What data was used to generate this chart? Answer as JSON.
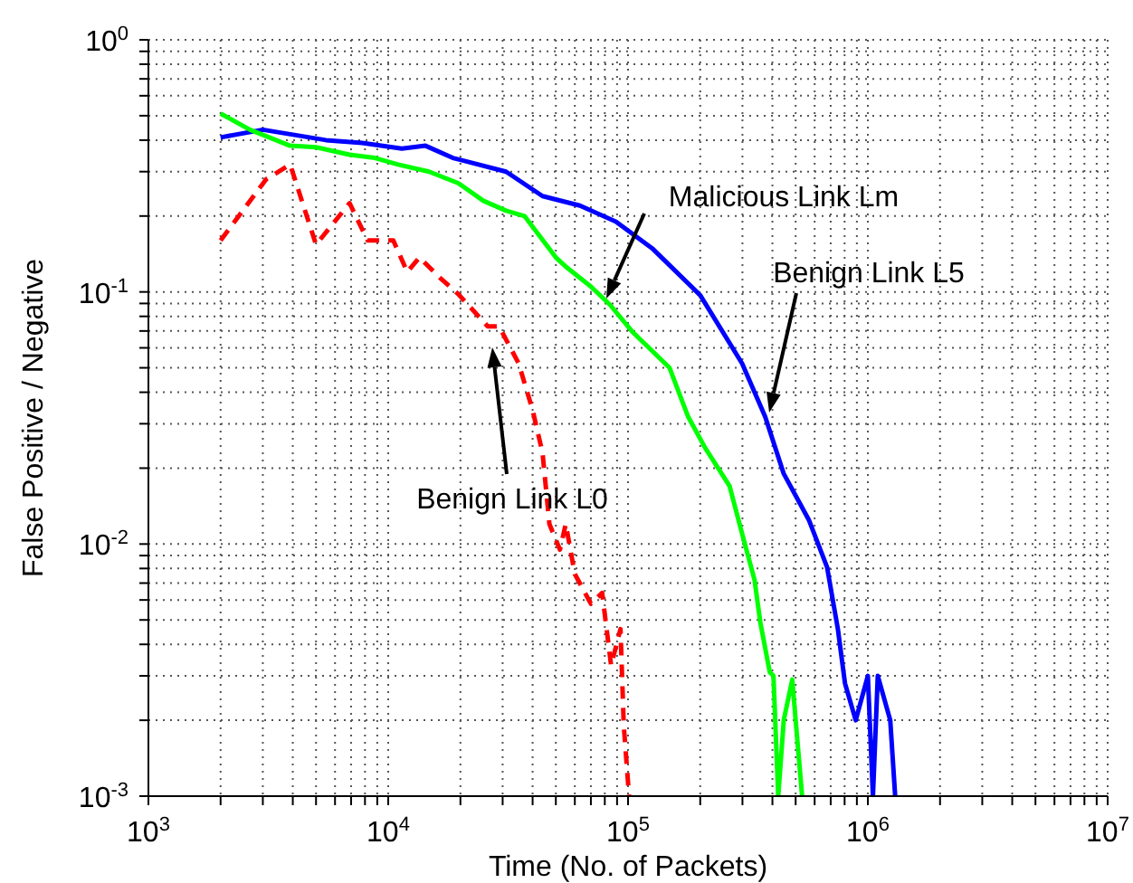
{
  "chart_data": {
    "type": "line",
    "xlabel": "Time (No. of Packets)",
    "ylabel": "False Positive / Negative",
    "log": "xy",
    "grid": true,
    "legend": false,
    "marker": "none",
    "xlim": [
      1000,
      10000000
    ],
    "xticks": [
      {
        "value": 1000,
        "label": "10$^{3}$"
      },
      {
        "value": 2000,
        "label": null
      },
      {
        "value": 3000,
        "label": null
      },
      {
        "value": 4000,
        "label": null
      },
      {
        "value": 5000,
        "label": null
      },
      {
        "value": 6000,
        "label": null
      },
      {
        "value": 7000,
        "label": null
      },
      {
        "value": 8000,
        "label": null
      },
      {
        "value": 9000,
        "label": null
      },
      {
        "value": 10000,
        "label": "10$^{4}$"
      },
      {
        "value": 20000,
        "label": null
      },
      {
        "value": 30000,
        "label": null
      },
      {
        "value": 40000,
        "label": null
      },
      {
        "value": 50000,
        "label": null
      },
      {
        "value": 60000,
        "label": null
      },
      {
        "value": 70000,
        "label": null
      },
      {
        "value": 80000,
        "label": null
      },
      {
        "value": 90000,
        "label": null
      },
      {
        "value": 100000,
        "label": "10$^{5}$"
      },
      {
        "value": 200000,
        "label": null
      },
      {
        "value": 300000,
        "label": null
      },
      {
        "value": 400000,
        "label": null
      },
      {
        "value": 500000,
        "label": null
      },
      {
        "value": 600000,
        "label": null
      },
      {
        "value": 700000,
        "label": null
      },
      {
        "value": 800000,
        "label": null
      },
      {
        "value": 900000,
        "label": null
      },
      {
        "value": 1000000,
        "label": "10$^{6}$"
      },
      {
        "value": 2000000,
        "label": null
      },
      {
        "value": 3000000,
        "label": null
      },
      {
        "value": 4000000,
        "label": null
      },
      {
        "value": 5000000,
        "label": null
      },
      {
        "value": 6000000,
        "label": null
      },
      {
        "value": 7000000,
        "label": null
      },
      {
        "value": 8000000,
        "label": null
      },
      {
        "value": 9000000,
        "label": null
      },
      {
        "value": 10000000,
        "label": "10$^{7}$"
      }
    ],
    "ylim": [
      0.001,
      1
    ],
    "yticks": [
      {
        "value": 0.001,
        "label": "10$^{-3}$"
      },
      {
        "value": 0.002,
        "label": null
      },
      {
        "value": 0.003,
        "label": null
      },
      {
        "value": 0.004,
        "label": null
      },
      {
        "value": 0.005,
        "label": null
      },
      {
        "value": 0.006,
        "label": null
      },
      {
        "value": 0.007,
        "label": null
      },
      {
        "value": 0.008,
        "label": null
      },
      {
        "value": 0.009,
        "label": null
      },
      {
        "value": 0.01,
        "label": "10$^{-2}$"
      },
      {
        "value": 0.02,
        "label": null
      },
      {
        "value": 0.03,
        "label": null
      },
      {
        "value": 0.04,
        "label": null
      },
      {
        "value": 0.05,
        "label": null
      },
      {
        "value": 0.06,
        "label": null
      },
      {
        "value": 0.07,
        "label": null
      },
      {
        "value": 0.08,
        "label": null
      },
      {
        "value": 0.09,
        "label": null
      },
      {
        "value": 0.1,
        "label": "10$^{-1}$"
      },
      {
        "value": 0.2,
        "label": null
      },
      {
        "value": 0.3,
        "label": null
      },
      {
        "value": 0.4,
        "label": null
      },
      {
        "value": 0.5,
        "label": null
      },
      {
        "value": 0.6,
        "label": null
      },
      {
        "value": 0.7,
        "label": null
      },
      {
        "value": 0.8,
        "label": null
      },
      {
        "value": 0.9,
        "label": null
      },
      {
        "value": 1,
        "label": "10$^{0}$"
      }
    ],
    "series": [
      {
        "color": "#0000ff",
        "line_style": "solid",
        "x": [
          2000,
          3000,
          5500,
          7800,
          11400,
          14300,
          18600,
          31000,
          44000,
          63000,
          89000,
          126000,
          200000,
          299000,
          373000,
          446000,
          569000,
          676000,
          750000,
          803000,
          890000,
          1000000,
          1050000,
          1100000,
          1240000,
          1300000
        ],
        "values": [
          0.41,
          0.44,
          0.4,
          0.39,
          0.37,
          0.38,
          0.34,
          0.3,
          0.24,
          0.22,
          0.19,
          0.149,
          0.097,
          0.052,
          0.032,
          0.019,
          0.0124,
          0.0081,
          0.0046,
          0.0028,
          0.002,
          0.003,
          0.001,
          0.003,
          0.002,
          0.001
        ]
      },
      {
        "color": "#00ff00",
        "line_style": "solid",
        "x": [
          2000,
          2650,
          3900,
          5000,
          6900,
          8800,
          11000,
          14800,
          19600,
          24900,
          31000,
          37000,
          50000,
          55000,
          70000,
          84000,
          105000,
          149000,
          178000,
          210000,
          265000,
          299000,
          337000,
          356000,
          390000,
          404000,
          423000,
          446000,
          484000,
          500000,
          532000
        ],
        "values": [
          0.51,
          0.44,
          0.38,
          0.375,
          0.35,
          0.34,
          0.32,
          0.3,
          0.27,
          0.23,
          0.21,
          0.2,
          0.137,
          0.126,
          0.105,
          0.089,
          0.069,
          0.05,
          0.032,
          0.024,
          0.017,
          0.011,
          0.0072,
          0.0049,
          0.0031,
          0.003,
          0.001,
          0.002,
          0.0029,
          0.002,
          0.001
        ]
      },
      {
        "color": "#ff0000",
        "line_style": "dashed",
        "x": [
          2000,
          3100,
          3900,
          5000,
          6900,
          8200,
          10500,
          12000,
          13500,
          16400,
          19600,
          26000,
          29000,
          35000,
          40000,
          44000,
          47000,
          52000,
          55000,
          60000,
          70000,
          78000,
          85000,
          93000,
          96000,
          101000
        ],
        "values": [
          0.16,
          0.28,
          0.32,
          0.154,
          0.225,
          0.16,
          0.16,
          0.12,
          0.137,
          0.114,
          0.098,
          0.073,
          0.073,
          0.052,
          0.034,
          0.023,
          0.012,
          0.0095,
          0.012,
          0.0076,
          0.0058,
          0.0064,
          0.0033,
          0.0046,
          0.0019,
          0.001
        ]
      }
    ],
    "annotations": [
      "Malicious Link Lm",
      "Benign Link L5",
      "Benign Link L0"
    ]
  }
}
